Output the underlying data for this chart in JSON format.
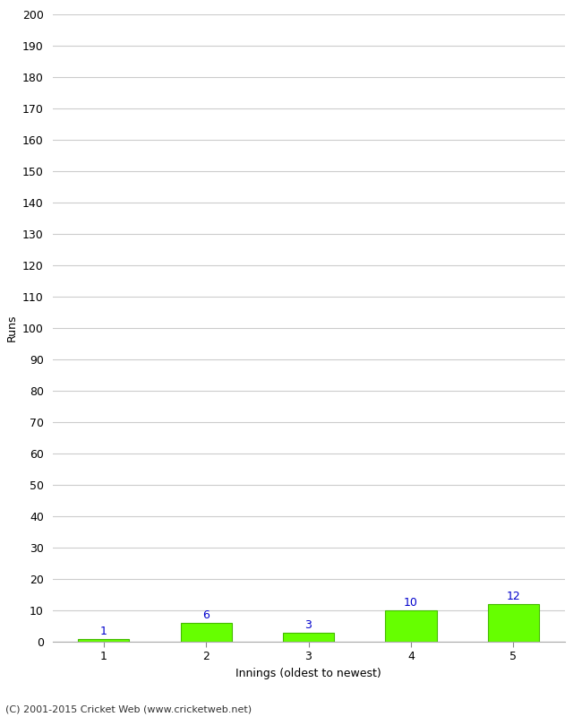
{
  "categories": [
    1,
    2,
    3,
    4,
    5
  ],
  "values": [
    1,
    6,
    3,
    10,
    12
  ],
  "bar_color": "#66ff00",
  "bar_edge_color": "#44bb00",
  "label_color": "#0000cc",
  "xlabel": "Innings (oldest to newest)",
  "ylabel": "Runs",
  "ylim": [
    0,
    200
  ],
  "yticks": [
    0,
    10,
    20,
    30,
    40,
    50,
    60,
    70,
    80,
    90,
    100,
    110,
    120,
    130,
    140,
    150,
    160,
    170,
    180,
    190,
    200
  ],
  "footer": "(C) 2001-2015 Cricket Web (www.cricketweb.net)",
  "background_color": "#ffffff",
  "grid_color": "#cccccc"
}
